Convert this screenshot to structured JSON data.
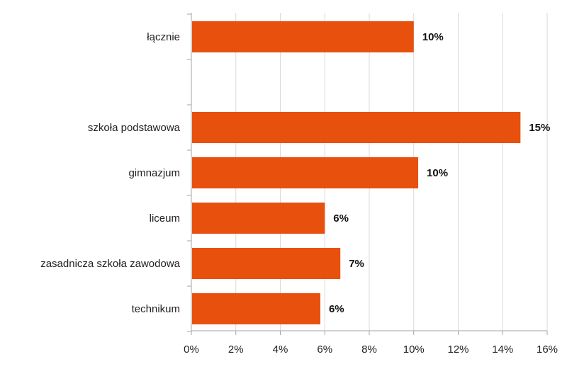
{
  "chart_data": {
    "type": "bar",
    "orientation": "horizontal",
    "categories": [
      "łącznie",
      "",
      "szkoła podstawowa",
      "gimnazjum",
      "liceum",
      "zasadnicza szkoła zawodowa",
      "technikum"
    ],
    "values": [
      10.0,
      null,
      14.8,
      10.2,
      6.0,
      6.7,
      5.8
    ],
    "value_labels": [
      "10%",
      "",
      "15%",
      "10%",
      "6%",
      "7%",
      "6%"
    ],
    "xlim": [
      0,
      16
    ],
    "xticks": [
      0,
      2,
      4,
      6,
      8,
      10,
      12,
      14,
      16
    ],
    "xtick_labels": [
      "0%",
      "2%",
      "4%",
      "6%",
      "8%",
      "10%",
      "12%",
      "14%",
      "16%"
    ],
    "title": "",
    "xlabel": "",
    "ylabel": "",
    "grid": "vertical",
    "legend": "none",
    "colors": {
      "bar": "#E8500E",
      "grid": "#D9D9D9",
      "axis": "#A6A6A6"
    }
  }
}
